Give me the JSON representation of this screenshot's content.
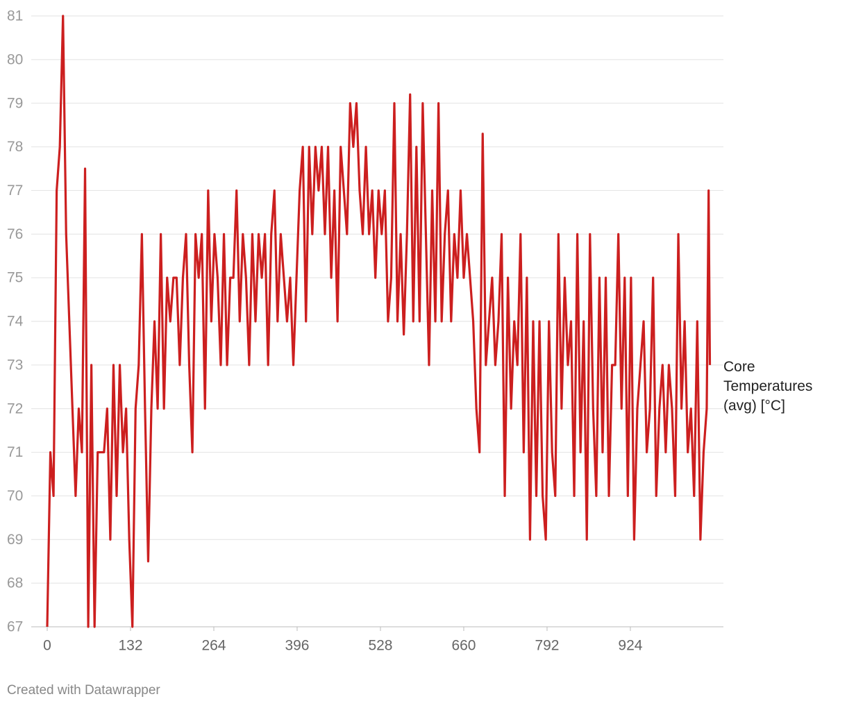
{
  "chart_data": {
    "type": "line",
    "x": [
      0,
      5,
      10,
      15,
      20,
      25,
      30,
      35,
      40,
      45,
      50,
      55,
      60,
      65,
      70,
      75,
      80,
      85,
      90,
      95,
      100,
      105,
      110,
      115,
      120,
      125,
      130,
      135,
      140,
      145,
      150,
      155,
      160,
      165,
      170,
      175,
      180,
      185,
      190,
      195,
      200,
      205,
      210,
      215,
      220,
      225,
      230,
      235,
      240,
      245,
      250,
      255,
      260,
      265,
      270,
      275,
      280,
      285,
      290,
      295,
      300,
      305,
      310,
      315,
      320,
      325,
      330,
      335,
      340,
      345,
      350,
      355,
      360,
      365,
      370,
      375,
      380,
      385,
      390,
      395,
      400,
      405,
      410,
      415,
      420,
      425,
      430,
      435,
      440,
      445,
      450,
      455,
      460,
      465,
      470,
      475,
      480,
      485,
      490,
      495,
      500,
      505,
      510,
      515,
      520,
      525,
      530,
      535,
      540,
      545,
      550,
      555,
      560,
      565,
      570,
      575,
      580,
      585,
      590,
      595,
      600,
      605,
      610,
      615,
      620,
      625,
      630,
      635,
      640,
      645,
      650,
      655,
      660,
      665,
      670,
      675,
      680,
      685,
      690,
      695,
      700,
      705,
      710,
      715,
      720,
      725,
      730,
      735,
      740,
      745,
      750,
      755,
      760,
      765,
      770,
      775,
      780,
      785,
      790,
      795,
      800,
      805,
      810,
      815,
      820,
      825,
      830,
      835,
      840,
      845,
      850,
      855,
      860,
      865,
      870,
      875,
      880,
      885,
      890,
      895,
      900,
      905,
      910,
      915,
      920,
      925,
      930,
      935,
      940,
      945,
      950,
      955,
      960,
      965,
      970,
      975,
      980,
      985,
      990,
      995,
      1000,
      1005,
      1010,
      1015,
      1020,
      1025,
      1030,
      1035,
      1040,
      1045,
      1048,
      1050
    ],
    "series": [
      {
        "name": "Core Temperatures (avg) [°C]",
        "color": "#cc1f1f",
        "values": [
          67,
          71,
          70,
          77,
          78,
          81,
          76,
          74,
          72,
          70,
          72,
          71,
          77.5,
          67,
          73,
          67,
          71,
          71,
          71,
          72,
          69,
          73,
          70,
          73,
          71,
          72,
          69,
          67,
          72,
          73,
          76,
          72,
          68.5,
          72,
          74,
          72,
          76,
          72,
          75,
          74,
          75,
          75,
          73,
          75,
          76,
          73,
          71,
          76,
          75,
          76,
          72,
          77,
          74,
          76,
          75,
          73,
          76,
          73,
          75,
          75,
          77,
          74,
          76,
          75,
          73,
          76,
          74,
          76,
          75,
          76,
          73,
          76,
          77,
          74,
          76,
          75,
          74,
          75,
          73,
          75,
          77,
          78,
          74,
          78,
          76,
          78,
          77,
          78,
          76,
          78,
          75,
          77,
          74,
          78,
          77,
          76,
          79,
          78,
          79,
          77,
          76,
          78,
          76,
          77,
          75,
          77,
          76,
          77,
          74,
          75,
          79,
          74,
          76,
          73.7,
          76,
          79.2,
          74,
          78,
          74,
          79,
          76,
          73,
          77,
          74,
          79,
          74,
          76,
          77,
          74,
          76,
          75,
          77,
          75,
          76,
          75,
          74,
          72,
          71,
          78.3,
          73,
          74,
          75,
          73,
          74,
          76,
          70,
          75,
          72,
          74,
          73,
          76,
          71,
          75,
          69,
          74,
          70,
          74,
          70,
          69,
          74,
          71,
          70,
          76,
          72,
          75,
          73,
          74,
          70,
          76,
          71,
          74,
          69,
          76,
          72,
          70,
          75,
          71,
          75,
          70,
          73,
          73,
          76,
          72,
          75,
          70,
          75,
          69,
          72,
          73,
          74,
          71,
          72,
          75,
          70,
          72,
          73,
          71,
          73,
          72,
          70,
          76,
          72,
          74,
          71,
          72,
          70,
          74,
          69,
          71,
          72,
          77,
          73
        ]
      }
    ],
    "xlim": [
      0,
      1050
    ],
    "ylim": [
      67,
      81
    ],
    "xticks": [
      0,
      132,
      264,
      396,
      528,
      660,
      792,
      924
    ],
    "yticks": [
      67,
      68,
      69,
      70,
      71,
      72,
      73,
      74,
      75,
      76,
      77,
      78,
      79,
      80,
      81
    ],
    "grid": true,
    "footer": "Created with Datawrapper"
  }
}
